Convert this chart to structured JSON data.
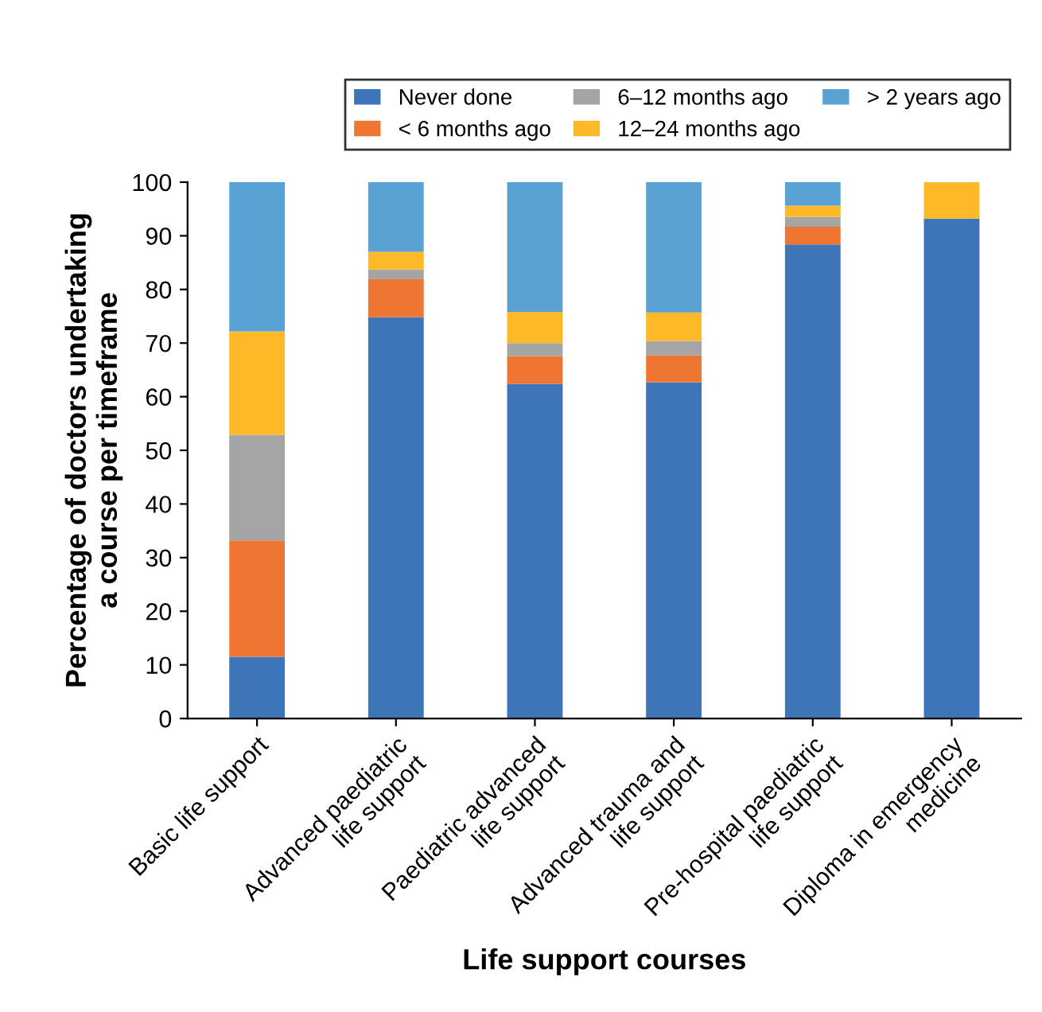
{
  "chart_data": {
    "type": "bar",
    "stacked": true,
    "xlabel": "Life support courses",
    "ylabel": "Percentage of doctors undertaking\na course per timeframe",
    "categories": [
      "Basic life support",
      "Advanced paediatric\nlife support",
      "Paediatric advanced\nlife support",
      "Advanced trauma and\nlife support",
      "Pre-hospital paediatric\nlife support",
      "Diploma in emergency\nmedicine"
    ],
    "series": [
      {
        "name": "Never done",
        "color": "#3e75b8",
        "values": [
          11.5,
          74.8,
          62.4,
          62.7,
          88.4,
          93.2
        ]
      },
      {
        "name": "< 6 months ago",
        "color": "#ef7632",
        "values": [
          21.7,
          7.1,
          5.2,
          5.0,
          3.3,
          0
        ]
      },
      {
        "name": "6–12 months ago",
        "color": "#a5a5a5",
        "values": [
          19.7,
          1.8,
          2.4,
          2.7,
          1.8,
          0
        ]
      },
      {
        "name": "12–24 months ago",
        "color": "#fdb927",
        "values": [
          19.3,
          3.3,
          5.8,
          5.3,
          2.1,
          6.8
        ]
      },
      {
        "name": "> 2 years ago",
        "color": "#5ba2d4",
        "values": [
          27.8,
          13.0,
          24.2,
          24.3,
          4.4,
          0
        ]
      }
    ],
    "ylim": [
      0,
      100
    ],
    "yticks": [
      0,
      10,
      20,
      30,
      40,
      50,
      60,
      70,
      80,
      90,
      100
    ],
    "grid": false,
    "legend": "top right"
  }
}
